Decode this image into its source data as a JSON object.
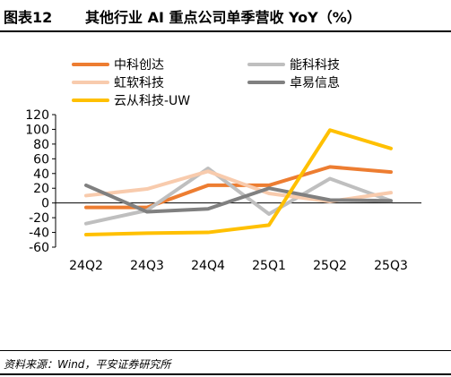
{
  "figure": {
    "label": "图表12",
    "title": "其他行业 AI 重点公司单季营收 YoY（%）",
    "source": "资料来源：Wind，平安证券研究所"
  },
  "chart_data": {
    "type": "line",
    "categories": [
      "24Q2",
      "24Q3",
      "24Q4",
      "25Q1",
      "25Q2",
      "25Q3"
    ],
    "ylim": [
      -60,
      120
    ],
    "yticks": [
      120,
      100,
      80,
      60,
      40,
      20,
      0,
      -20,
      -40,
      -60
    ],
    "grid": false,
    "legend_placement": "top",
    "series": [
      {
        "name": "中科创达",
        "color": "#ED7D31",
        "values": [
          -6,
          -6,
          24,
          24,
          49,
          42
        ]
      },
      {
        "name": "能科科技",
        "color": "#BFBFBF",
        "values": [
          -28,
          -10,
          47,
          -15,
          33,
          3
        ]
      },
      {
        "name": "虹软科技",
        "color": "#F8CBAD",
        "values": [
          10,
          19,
          43,
          13,
          2,
          14
        ]
      },
      {
        "name": "卓易信息",
        "color": "#808080",
        "values": [
          24,
          -12,
          -8,
          20,
          4,
          3
        ]
      },
      {
        "name": "云从科技-UW",
        "color": "#FFC000",
        "values": [
          -43,
          -41,
          -40,
          -30,
          99,
          74
        ]
      }
    ]
  }
}
